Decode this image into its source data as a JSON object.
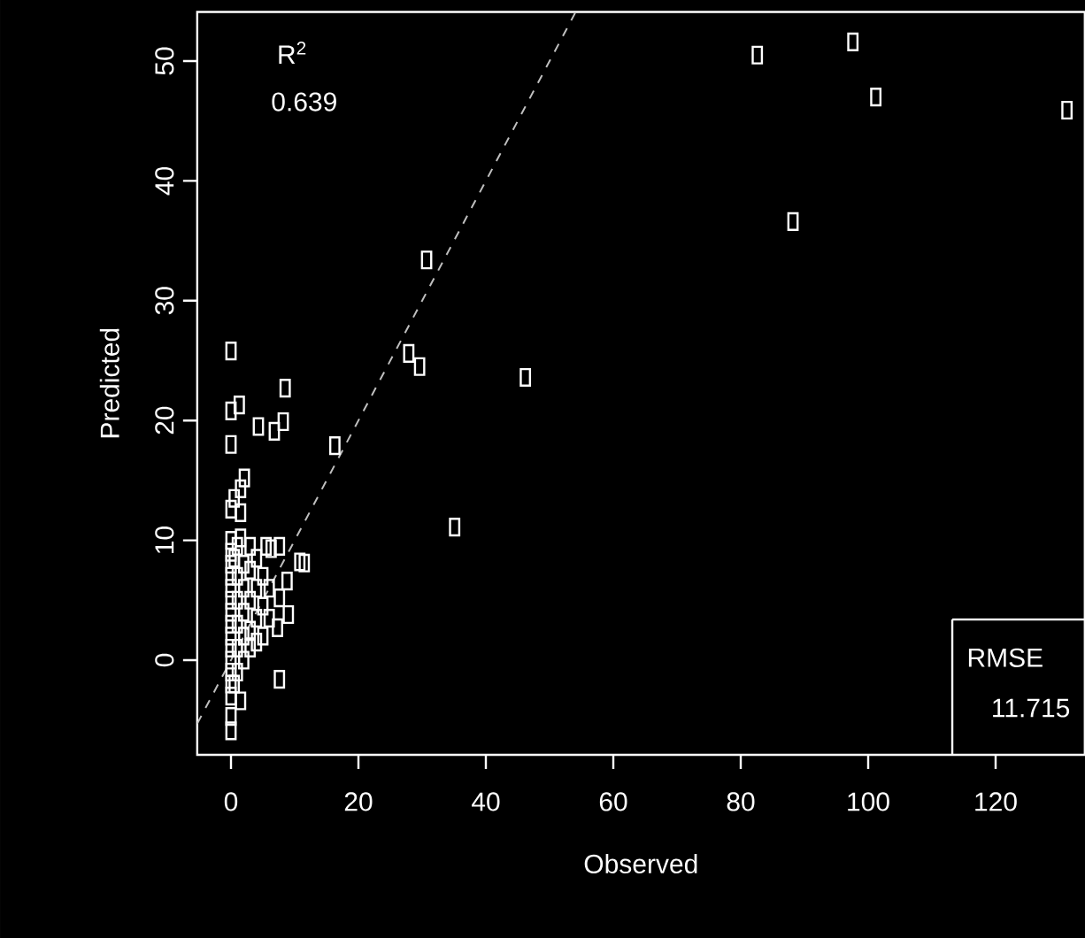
{
  "chart_data": {
    "type": "scatter",
    "xlabel": "Observed",
    "ylabel": "Predicted",
    "xlim": [
      -5.3,
      134
    ],
    "ylim": [
      -7.9,
      54.1
    ],
    "xticks": [
      0,
      20,
      40,
      60,
      80,
      100,
      120
    ],
    "yticks": [
      0,
      10,
      20,
      30,
      40,
      50
    ],
    "grid": false,
    "annotations": [
      "R$^{2}$",
      "0.639",
      "RMSE",
      "11.715"
    ],
    "series": [
      {
        "marker": "square",
        "color": "#ffffff",
        "x": [
          0,
          0,
          1.3,
          0,
          4.3,
          6.8,
          8.5,
          8.2,
          16.3,
          30.7,
          27.9,
          29.6,
          46.2,
          35.1,
          82.6,
          97.6,
          101.2,
          88.2,
          131.2,
          1.5,
          2.1,
          0,
          1.5,
          0.5,
          7.6,
          6.3,
          11.5,
          10.8,
          8.8,
          9.0,
          7.6,
          7.3,
          7.6,
          1.5,
          0,
          0,
          0,
          0,
          0,
          0,
          0,
          0,
          0,
          0,
          0,
          0,
          0,
          0,
          0,
          0,
          0.5,
          1,
          1,
          1,
          1,
          1,
          1,
          2,
          2,
          2,
          2,
          2,
          3,
          3,
          3,
          3,
          3,
          4,
          4,
          4,
          4,
          5,
          5,
          5,
          6,
          6,
          5.5,
          1.5,
          0.5
        ],
        "values": [
          25.8,
          20.8,
          21.3,
          18.0,
          19.5,
          19.1,
          22.7,
          19.9,
          17.9,
          33.4,
          25.6,
          24.5,
          23.6,
          11.1,
          50.5,
          51.6,
          47.0,
          36.6,
          45.9,
          14.3,
          15.2,
          12.6,
          12.3,
          13.5,
          9.5,
          9.3,
          8.1,
          8.2,
          6.6,
          3.8,
          5.2,
          2.7,
          -1.6,
          -3.4,
          -4.7,
          -5.9,
          10,
          9,
          8,
          7,
          6,
          5,
          4,
          3,
          2,
          1,
          0,
          -1,
          -2,
          -3,
          8.5,
          9.5,
          7,
          5,
          3,
          1,
          -1,
          8,
          6,
          4,
          2,
          0,
          9.5,
          7.5,
          5,
          2.5,
          1,
          8.5,
          6,
          3.5,
          1.5,
          7,
          4.5,
          2,
          6,
          3.5,
          9.5,
          10.2,
          -2
        ]
      },
      {
        "type": "line",
        "color": "#bfbfbf",
        "line_style": "dashed",
        "x": [
          -5.3,
          54
        ],
        "values": [
          -5.3,
          54
        ]
      }
    ]
  }
}
